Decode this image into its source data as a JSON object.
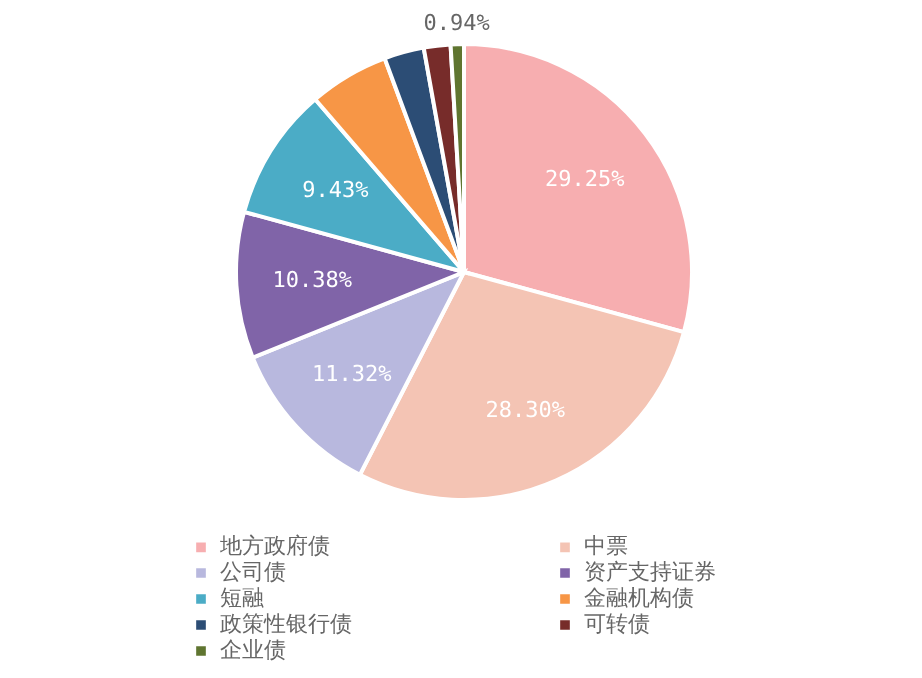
{
  "chart_data": {
    "type": "pie",
    "categories": [
      "地方政府债",
      "中票",
      "公司债",
      "资产支持证券",
      "短融",
      "金融机构债",
      "政策性银行债",
      "可转债",
      "企业债"
    ],
    "values": [
      29.25,
      28.3,
      11.32,
      10.38,
      9.43,
      5.66,
      2.83,
      1.89,
      0.94
    ],
    "colors": [
      "#f7aeb0",
      "#f4c4b4",
      "#b8b8de",
      "#8064a8",
      "#4bacc6",
      "#f79646",
      "#2c4d75",
      "#772c2a",
      "#5f7530"
    ],
    "value_labels": [
      "29.25%",
      "28.30%",
      "11.32%",
      "10.38%",
      "9.43%",
      null,
      null,
      null,
      "0.94%"
    ],
    "legend": "bottom"
  }
}
